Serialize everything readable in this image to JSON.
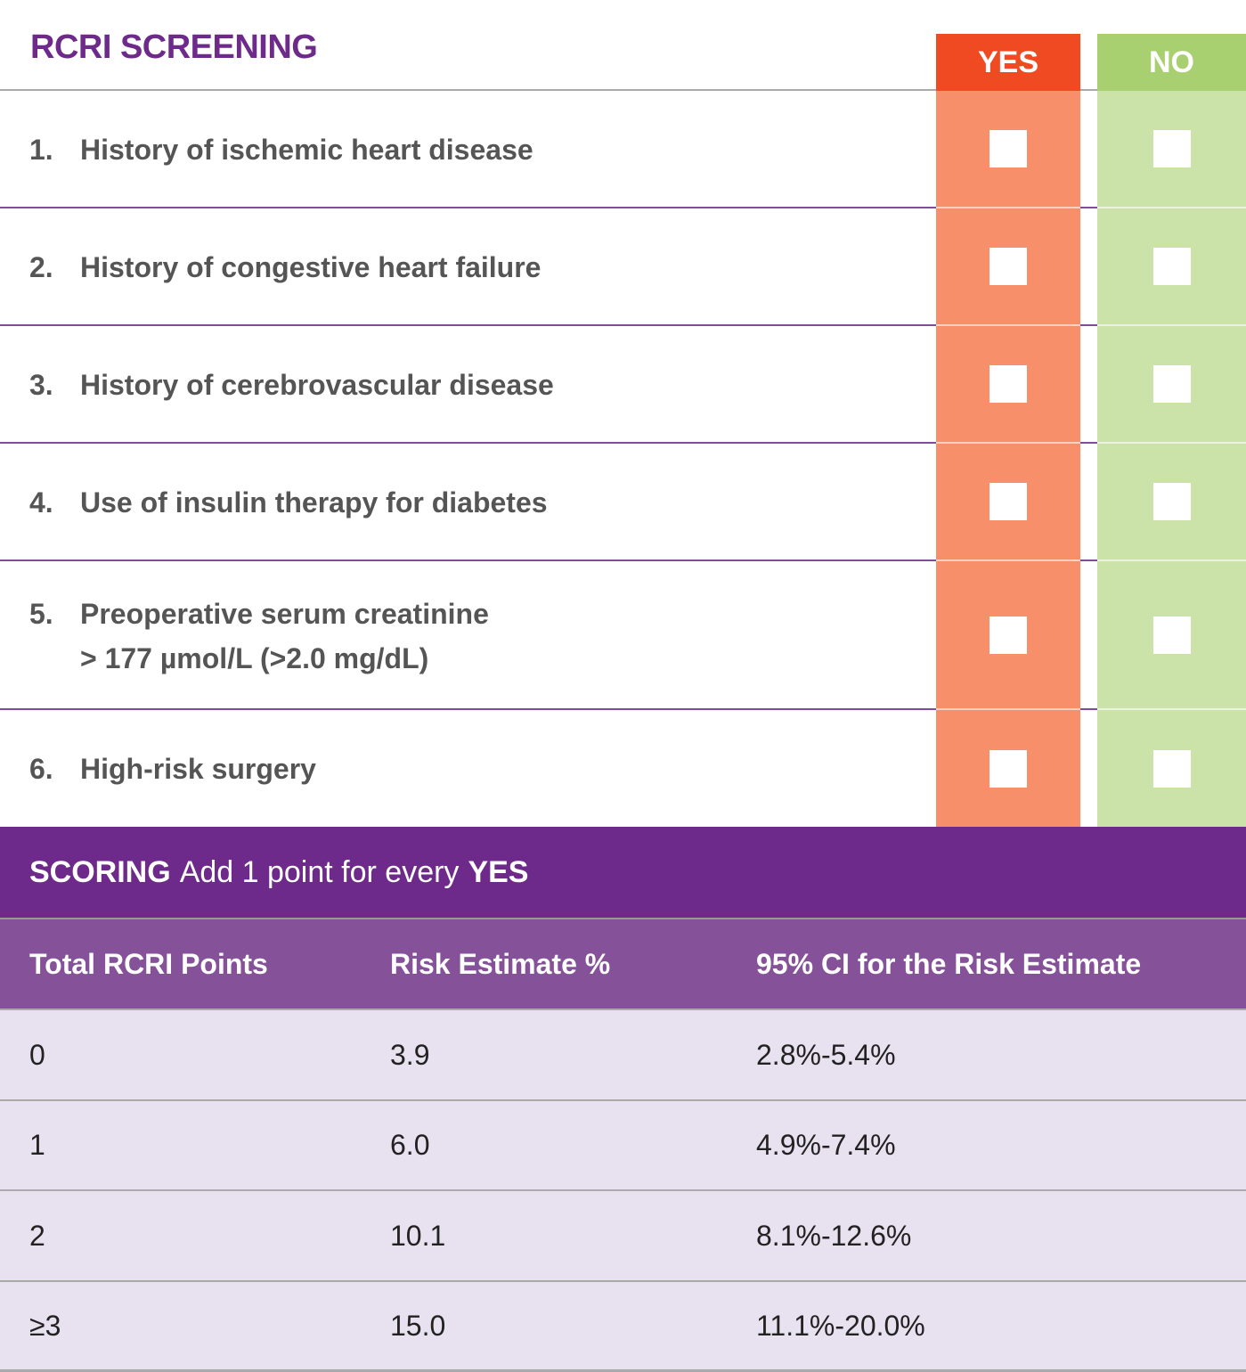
{
  "title": "RCRI SCREENING",
  "columns": {
    "yes": "YES",
    "no": "NO"
  },
  "criteria": [
    {
      "num": "1.",
      "lines": [
        "History of ischemic heart disease"
      ]
    },
    {
      "num": "2.",
      "lines": [
        "History of congestive heart failure"
      ]
    },
    {
      "num": "3.",
      "lines": [
        "History of cerebrovascular disease"
      ]
    },
    {
      "num": "4.",
      "lines": [
        "Use of insulin therapy for diabetes"
      ]
    },
    {
      "num": "5.",
      "lines": [
        "Preoperative serum creatinine",
        "> 177 µmol/L (>2.0 mg/dL)"
      ]
    },
    {
      "num": "6.",
      "lines": [
        "High-risk surgery"
      ]
    }
  ],
  "scoring": {
    "label": "SCORING",
    "text": "Add 1 point for every",
    "yes": "YES"
  },
  "table": {
    "headers": [
      "Total RCRI Points",
      "Risk Estimate %",
      "95% CI for the Risk Estimate"
    ],
    "rows": [
      [
        "0",
        "3.9",
        "2.8%-5.4%"
      ],
      [
        "1",
        "6.0",
        "4.9%-7.4%"
      ],
      [
        "2",
        "10.1",
        "8.1%-12.6%"
      ],
      [
        "≥3",
        "15.0",
        "11.1%-20.0%"
      ]
    ]
  },
  "colors": {
    "purple": "#6e2a8a",
    "yes": "#f04a23",
    "no": "#a8d070"
  }
}
